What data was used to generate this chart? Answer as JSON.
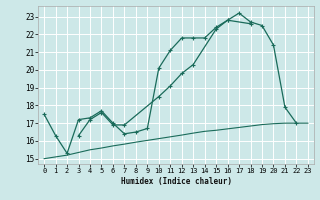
{
  "title": "",
  "xlabel": "Humidex (Indice chaleur)",
  "bg_color": "#cde8e8",
  "grid_color": "#ffffff",
  "line_color": "#1a6b5a",
  "xlim": [
    -0.5,
    23.5
  ],
  "ylim": [
    14.7,
    23.6
  ],
  "yticks": [
    15,
    16,
    17,
    18,
    19,
    20,
    21,
    22,
    23
  ],
  "xticks": [
    0,
    1,
    2,
    3,
    4,
    5,
    6,
    7,
    8,
    9,
    10,
    11,
    12,
    13,
    14,
    15,
    16,
    17,
    18,
    19,
    20,
    21,
    22,
    23
  ],
  "line1_x": [
    0,
    1,
    2,
    3,
    4,
    5,
    6,
    7,
    8,
    9,
    10,
    11,
    12,
    13,
    14,
    15,
    16,
    17,
    18,
    19,
    20,
    21,
    22
  ],
  "line1_y": [
    17.5,
    16.3,
    15.3,
    17.2,
    17.3,
    17.7,
    17.0,
    16.4,
    16.5,
    16.7,
    20.1,
    21.1,
    21.8,
    21.8,
    21.8,
    22.4,
    22.8,
    23.2,
    22.7,
    22.5,
    21.4,
    17.9,
    17.0
  ],
  "line2_x": [
    3,
    4,
    5,
    6,
    7,
    10,
    11,
    12,
    13,
    15,
    16,
    18
  ],
  "line2_y": [
    16.3,
    17.2,
    17.6,
    16.9,
    16.9,
    18.5,
    19.1,
    19.8,
    20.3,
    22.3,
    22.8,
    22.6
  ],
  "line3_x": [
    0,
    1,
    2,
    3,
    4,
    5,
    6,
    7,
    8,
    9,
    10,
    11,
    12,
    13,
    14,
    15,
    16,
    17,
    18,
    19,
    20,
    21,
    22,
    23
  ],
  "line3_y": [
    15.0,
    15.1,
    15.2,
    15.35,
    15.5,
    15.6,
    15.72,
    15.82,
    15.93,
    16.03,
    16.13,
    16.23,
    16.33,
    16.44,
    16.54,
    16.6,
    16.68,
    16.76,
    16.84,
    16.92,
    16.97,
    17.0,
    17.0,
    17.0
  ]
}
